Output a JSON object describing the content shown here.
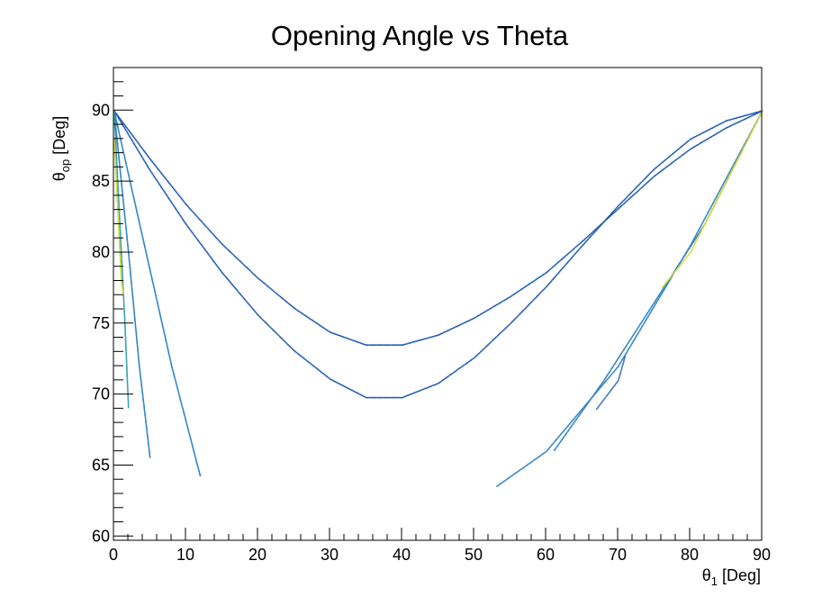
{
  "chart_data": {
    "type": "scatter",
    "title": "Opening Angle vs Theta",
    "xlabel": {
      "main": "θ",
      "sub": "1",
      "unit": " [Deg]"
    },
    "ylabel": {
      "main": "θ",
      "sub": "op",
      "unit": " [Deg]"
    },
    "xlim": [
      0,
      90
    ],
    "ylim": [
      59.7,
      93
    ],
    "x_ticks": [
      0,
      10,
      20,
      30,
      40,
      50,
      60,
      70,
      80,
      90
    ],
    "y_ticks": [
      60,
      65,
      70,
      75,
      80,
      85,
      90
    ],
    "grid": false,
    "legend": "none",
    "colors": {
      "primary": "#1f5fb4",
      "mid": "#2e9fb0",
      "high": "#e6e600"
    },
    "series": [
      {
        "color": "#1a56b0",
        "points": [
          [
            0,
            90
          ],
          [
            5,
            86.6
          ],
          [
            10,
            83.4
          ],
          [
            15,
            80.6
          ],
          [
            20,
            78.2
          ],
          [
            25,
            76.1
          ],
          [
            30,
            74.4
          ],
          [
            35,
            73.5
          ],
          [
            40,
            73.5
          ],
          [
            45,
            74.2
          ],
          [
            50,
            75.4
          ],
          [
            55,
            76.9
          ],
          [
            60,
            78.6
          ],
          [
            65,
            80.8
          ],
          [
            70,
            83.1
          ],
          [
            75,
            85.4
          ],
          [
            80,
            87.3
          ],
          [
            85,
            88.8
          ],
          [
            90,
            90
          ]
        ]
      },
      {
        "color": "#1a56b0",
        "points": [
          [
            0,
            90
          ],
          [
            5,
            85.8
          ],
          [
            10,
            82.0
          ],
          [
            15,
            78.6
          ],
          [
            20,
            75.6
          ],
          [
            25,
            73.1
          ],
          [
            30,
            71.1
          ],
          [
            35,
            69.8
          ],
          [
            40,
            69.8
          ],
          [
            45,
            70.8
          ],
          [
            50,
            72.6
          ],
          [
            55,
            75.0
          ],
          [
            60,
            77.6
          ],
          [
            65,
            80.5
          ],
          [
            70,
            83.3
          ],
          [
            75,
            85.9
          ],
          [
            80,
            88.0
          ],
          [
            85,
            89.3
          ],
          [
            90,
            90
          ]
        ]
      },
      {
        "color": "#2a7fc0",
        "points": [
          [
            0,
            90
          ],
          [
            4,
            81
          ],
          [
            8,
            72
          ],
          [
            12,
            64.2
          ]
        ]
      },
      {
        "color": "#2a7fc0",
        "points": [
          [
            0,
            90
          ],
          [
            2,
            80
          ],
          [
            3.5,
            72
          ],
          [
            5,
            65.5
          ]
        ]
      },
      {
        "color": "#2e9fb0",
        "points": [
          [
            0,
            90
          ],
          [
            0.8,
            82
          ],
          [
            1.5,
            75
          ],
          [
            2,
            69
          ]
        ]
      },
      {
        "color": "#d9d930",
        "points": [
          [
            0,
            88
          ],
          [
            0.5,
            83
          ],
          [
            1,
            78
          ],
          [
            1.3,
            77
          ]
        ]
      },
      {
        "color": "#2a7fc0",
        "points": [
          [
            90,
            90
          ],
          [
            80,
            80.5
          ],
          [
            70,
            72
          ],
          [
            60,
            66
          ],
          [
            53,
            63.5
          ]
        ]
      },
      {
        "color": "#2a7fc0",
        "points": [
          [
            90,
            90
          ],
          [
            82,
            82
          ],
          [
            75,
            76.5
          ],
          [
            68,
            71
          ],
          [
            61,
            66
          ]
        ]
      },
      {
        "color": "#3a6fc0",
        "points": [
          [
            67,
            69
          ],
          [
            70,
            71
          ],
          [
            71,
            72.8
          ]
        ]
      },
      {
        "color": "#d9d930",
        "points": [
          [
            90,
            90
          ],
          [
            84,
            84
          ],
          [
            80,
            80
          ],
          [
            76,
            77.5
          ]
        ]
      }
    ]
  }
}
